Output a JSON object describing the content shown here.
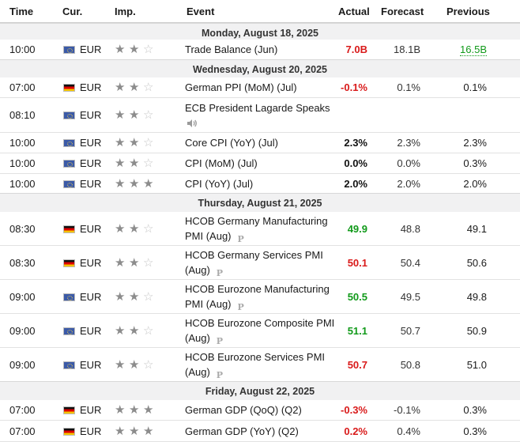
{
  "header": {
    "time": "Time",
    "cur": "Cur.",
    "imp": "Imp.",
    "event": "Event",
    "actual": "Actual",
    "forecast": "Forecast",
    "previous": "Previous"
  },
  "days": [
    {
      "label": "Monday, August 18, 2025"
    },
    {
      "label": "Wednesday, August 20, 2025"
    },
    {
      "label": "Thursday, August 21, 2025"
    },
    {
      "label": "Friday, August 22, 2025"
    }
  ],
  "events": [
    {
      "time": "10:00",
      "flag": "eu-flag-icon",
      "currency": "EUR",
      "importance": 2,
      "event": "Trade Balance (Jun)",
      "actual": "7.0B",
      "actual_color": "#d91a1a",
      "forecast": "18.1B",
      "previous": "16.5B",
      "previous_style": "revised-green"
    },
    {
      "time": "07:00",
      "flag": "de-flag-icon",
      "currency": "EUR",
      "importance": 2,
      "event": "German PPI (MoM) (Jul)",
      "actual": "-0.1%",
      "actual_color": "#d91a1a",
      "forecast": "0.1%",
      "previous": "0.1%"
    },
    {
      "time": "08:10",
      "flag": "eu-flag-icon",
      "currency": "EUR",
      "importance": 2,
      "event": "ECB President Lagarde Speaks",
      "speech": "speaker-icon",
      "actual": "",
      "forecast": "",
      "previous": ""
    },
    {
      "time": "10:00",
      "flag": "eu-flag-icon",
      "currency": "EUR",
      "importance": 2,
      "event": "Core CPI (YoY) (Jul)",
      "actual": "2.3%",
      "actual_color": "#111111",
      "forecast": "2.3%",
      "previous": "2.3%"
    },
    {
      "time": "10:00",
      "flag": "eu-flag-icon",
      "currency": "EUR",
      "importance": 2,
      "event": "CPI (MoM) (Jul)",
      "actual": "0.0%",
      "actual_color": "#111111",
      "forecast": "0.0%",
      "previous": "0.3%"
    },
    {
      "time": "10:00",
      "flag": "eu-flag-icon",
      "currency": "EUR",
      "importance": 3,
      "event": "CPI (YoY) (Jul)",
      "actual": "2.0%",
      "actual_color": "#111111",
      "forecast": "2.0%",
      "previous": "2.0%"
    },
    {
      "time": "08:30",
      "flag": "de-flag-icon",
      "currency": "EUR",
      "importance": 2,
      "event_line1": "HCOB Germany Manufacturing",
      "event_line2": "PMI (Aug)",
      "prelim": "P",
      "actual": "49.9",
      "actual_color": "#119a1a",
      "forecast": "48.8",
      "previous": "49.1"
    },
    {
      "time": "08:30",
      "flag": "de-flag-icon",
      "currency": "EUR",
      "importance": 2,
      "event_line1": "HCOB Germany Services PMI",
      "event_line2": "(Aug)",
      "prelim": "P",
      "actual": "50.1",
      "actual_color": "#d91a1a",
      "forecast": "50.4",
      "previous": "50.6"
    },
    {
      "time": "09:00",
      "flag": "eu-flag-icon",
      "currency": "EUR",
      "importance": 2,
      "event_line1": "HCOB Eurozone Manufacturing",
      "event_line2": "PMI (Aug)",
      "prelim": "P",
      "actual": "50.5",
      "actual_color": "#119a1a",
      "forecast": "49.5",
      "previous": "49.8"
    },
    {
      "time": "09:00",
      "flag": "eu-flag-icon",
      "currency": "EUR",
      "importance": 2,
      "event_line1": "HCOB Eurozone Composite PMI",
      "event_line2": "(Aug)",
      "prelim": "P",
      "actual": "51.1",
      "actual_color": "#119a1a",
      "forecast": "50.7",
      "previous": "50.9"
    },
    {
      "time": "09:00",
      "flag": "eu-flag-icon",
      "currency": "EUR",
      "importance": 2,
      "event_line1": "HCOB Eurozone Services PMI",
      "event_line2": "(Aug)",
      "prelim": "P",
      "actual": "50.7",
      "actual_color": "#d91a1a",
      "forecast": "50.8",
      "previous": "51.0"
    },
    {
      "time": "07:00",
      "flag": "de-flag-icon",
      "currency": "EUR",
      "importance": 3,
      "event": "German GDP (QoQ) (Q2)",
      "actual": "-0.3%",
      "actual_color": "#d91a1a",
      "forecast": "-0.1%",
      "previous": "0.3%"
    },
    {
      "time": "07:00",
      "flag": "de-flag-icon",
      "currency": "EUR",
      "importance": 3,
      "event": "German GDP (YoY) (Q2)",
      "actual": "0.2%",
      "actual_color": "#d91a1a",
      "forecast": "0.4%",
      "previous": "0.3%"
    }
  ],
  "colors": {
    "down": "#d91a1a",
    "up": "#119a1a",
    "neutral": "#111111",
    "star_on": "#8c8c8c",
    "star_off": "#c6c6c6"
  }
}
